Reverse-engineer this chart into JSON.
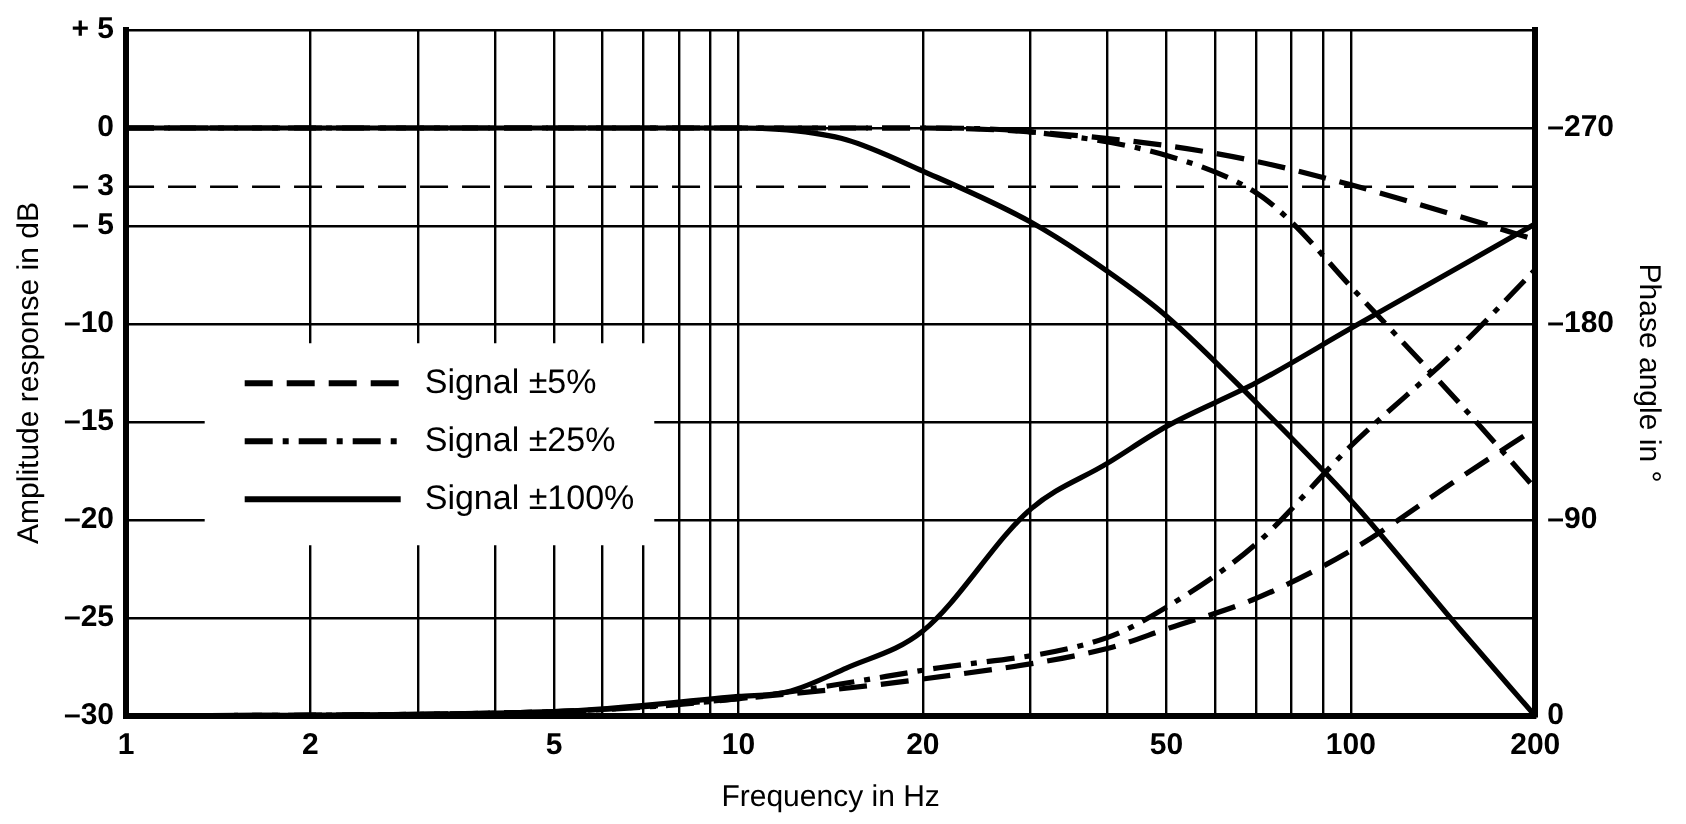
{
  "chart_data": {
    "type": "line",
    "xlabel": "Frequency in Hz",
    "ylabel": "Amplitude response in dB",
    "y2label": "Phase angle in °",
    "log": "x",
    "grid": true,
    "legend": "left",
    "marker": "none",
    "xlim": [
      1,
      200
    ],
    "xticks": [
      1,
      2,
      {
        "value": 3,
        "label": null
      },
      {
        "value": 4,
        "label": null
      },
      5,
      {
        "value": 6,
        "label": null
      },
      {
        "value": 7,
        "label": null
      },
      {
        "value": 8,
        "label": null
      },
      {
        "value": 9,
        "label": null
      },
      10,
      20,
      {
        "value": 30,
        "label": null
      },
      {
        "value": 40,
        "label": null
      },
      50,
      {
        "value": 60,
        "label": null
      },
      {
        "value": 70,
        "label": null
      },
      {
        "value": 80,
        "label": null
      },
      {
        "value": 90,
        "label": null
      },
      100,
      200
    ],
    "ylim": [
      -30,
      5
    ],
    "yticks": [
      {
        "value": -30,
        "label": "–30"
      },
      {
        "value": -25,
        "label": "–25"
      },
      {
        "value": -20,
        "label": "–20"
      },
      {
        "value": -15,
        "label": "–15"
      },
      {
        "value": -10,
        "label": "–10"
      },
      {
        "value": -5,
        "label": "– 5"
      },
      {
        "value": -3,
        "label": "– 3"
      },
      0,
      {
        "value": 5,
        "label": "+ 5"
      }
    ],
    "y2lim": [
      0,
      -315
    ],
    "y2ticks": [
      0,
      {
        "value": -90,
        "label": "–90"
      },
      {
        "value": -180,
        "label": "–180"
      },
      {
        "value": -270,
        "label": "–270"
      }
    ],
    "ref_lines": [
      {
        "axis": "y",
        "value": -3,
        "line_style": "dashed",
        "color": "#000000"
      }
    ],
    "series": [
      {
        "name": "Signal ±5%",
        "color": "#000000",
        "line_style": "dashed",
        "x": [
          1,
          10,
          20,
          30,
          50,
          70,
          100,
          150,
          200
        ],
        "values": [
          0,
          0,
          0,
          -0.2,
          -0.9,
          -1.7,
          -2.9,
          -4.5,
          -5.7
        ]
      },
      {
        "name": "Signal ±25%",
        "color": "#000000",
        "line_style": "dashdot",
        "x": [
          1,
          10,
          20,
          30,
          50,
          70,
          80,
          100,
          150,
          200
        ],
        "values": [
          0,
          0,
          0,
          -0.2,
          -1.4,
          -3.3,
          -4.8,
          -8.1,
          -14,
          -18.4
        ]
      },
      {
        "name": "Signal ±100%",
        "color": "#000000",
        "line_style": "solid",
        "x": [
          1,
          10,
          12,
          15,
          20,
          30,
          40,
          50,
          70,
          100,
          150,
          200
        ],
        "values": [
          0,
          0,
          -0.1,
          -0.6,
          -2.2,
          -4.8,
          -7.3,
          -9.6,
          -14,
          -19,
          -25.5,
          -30
        ]
      },
      {
        "color": "#000000",
        "line_style": "dashed",
        "axis": "y2",
        "x": [
          1,
          5,
          10,
          20,
          40,
          50,
          70,
          100,
          150,
          200
        ],
        "values": [
          0,
          -2,
          -8,
          -17,
          -31,
          -40,
          -54,
          -76,
          -109,
          -132
        ]
      },
      {
        "color": "#000000",
        "line_style": "dashdot",
        "axis": "y2",
        "x": [
          1,
          5,
          10,
          20,
          40,
          50,
          70,
          100,
          150,
          200
        ],
        "values": [
          0,
          -2,
          -8,
          -21,
          -36,
          -50,
          -79,
          -124,
          -169,
          -205
        ]
      },
      {
        "color": "#000000",
        "line_style": "solid",
        "axis": "y2",
        "x": [
          1,
          5,
          10,
          12,
          15,
          20,
          30,
          40,
          50,
          70,
          100,
          200
        ],
        "values": [
          0,
          -2,
          -9,
          -11,
          -22,
          -39,
          -95,
          -116,
          -133,
          -153,
          -178,
          -226
        ]
      }
    ]
  }
}
